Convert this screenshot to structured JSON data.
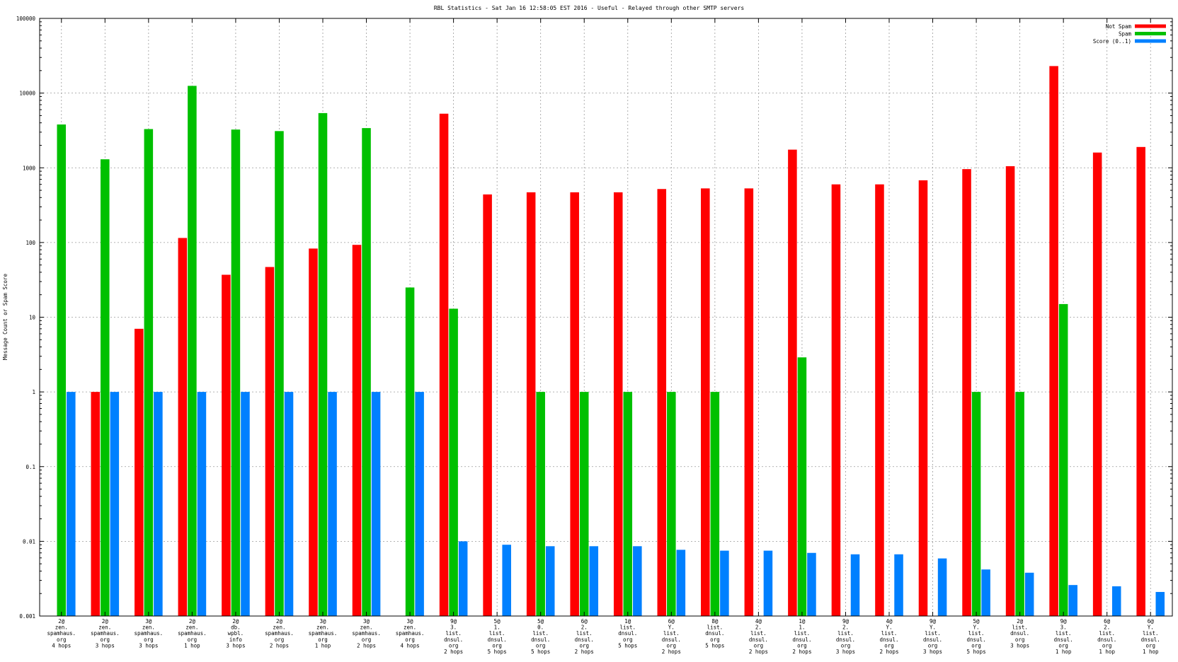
{
  "chart_data": {
    "type": "bar",
    "title": "RBL Statistics - Sat Jan 16 12:58:05 EST 2016 - Useful - Relayed through other SMTP servers",
    "xlabel": "",
    "ylabel": "Message Count or Spam Score",
    "yscale": "log",
    "ylim": [
      0.001,
      100000
    ],
    "yticks": [
      "0.001",
      "0.01",
      "0.1",
      "1",
      "10",
      "100",
      "1000",
      "10000",
      "100000"
    ],
    "grid": true,
    "legend_position": "top-right",
    "categories": [
      [
        "2@",
        "zen.",
        "spamhaus.",
        "org",
        "4 hops"
      ],
      [
        "2@",
        "zen.",
        "spamhaus.",
        "org",
        "3 hops"
      ],
      [
        "3@",
        "zen.",
        "spamhaus.",
        "org",
        "3 hops"
      ],
      [
        "2@",
        "zen.",
        "spamhaus.",
        "org",
        "1 hop"
      ],
      [
        "2@",
        "db.",
        "wpbl.",
        "info",
        "3 hops"
      ],
      [
        "2@",
        "zen.",
        "spamhaus.",
        "org",
        "2 hops"
      ],
      [
        "3@",
        "zen.",
        "spamhaus.",
        "org",
        "1 hop"
      ],
      [
        "3@",
        "zen.",
        "spamhaus.",
        "org",
        "2 hops"
      ],
      [
        "3@",
        "zen.",
        "spamhaus.",
        "org",
        "4 hops"
      ],
      [
        "9@",
        "3.",
        "list.",
        "dnsul.",
        "org",
        "2 hops"
      ],
      [
        "5@",
        "1.",
        "list.",
        "dnsul.",
        "org",
        "5 hops"
      ],
      [
        "5@",
        "0.",
        "list.",
        "dnsul.",
        "org",
        "5 hops"
      ],
      [
        "6@",
        "2.",
        "list.",
        "dnsul.",
        "org",
        "2 hops"
      ],
      [
        "1@",
        "list.",
        "dnsul.",
        "org",
        "5 hops"
      ],
      [
        "6@",
        "Y.",
        "list.",
        "dnsul.",
        "org",
        "2 hops"
      ],
      [
        "8@",
        "list.",
        "dnsul.",
        "org",
        "5 hops"
      ],
      [
        "4@",
        "2.",
        "list.",
        "dnsul.",
        "org",
        "2 hops"
      ],
      [
        "1@",
        "1.",
        "list.",
        "dnsul.",
        "org",
        "2 hops"
      ],
      [
        "9@",
        "2.",
        "list.",
        "dnsul.",
        "org",
        "3 hops"
      ],
      [
        "4@",
        "Y.",
        "list.",
        "dnsul.",
        "org",
        "2 hops"
      ],
      [
        "9@",
        "Y.",
        "list.",
        "dnsul.",
        "org",
        "3 hops"
      ],
      [
        "5@",
        "Y.",
        "list.",
        "dnsul.",
        "org",
        "5 hops"
      ],
      [
        "2@",
        "list.",
        "dnsul.",
        "org",
        "3 hops"
      ],
      [
        "9@",
        "3.",
        "list.",
        "dnsul.",
        "org",
        "1 hop"
      ],
      [
        "6@",
        "2.",
        "list.",
        "dnsul.",
        "org",
        "1 hop"
      ],
      [
        "6@",
        "Y.",
        "list.",
        "dnsul.",
        "org",
        "1 hop"
      ]
    ],
    "series": [
      {
        "name": "Not Spam",
        "color": "#ff0000",
        "values": [
          null,
          1,
          7,
          115,
          37,
          47,
          83,
          93,
          null,
          5300,
          440,
          470,
          470,
          470,
          520,
          530,
          530,
          1750,
          600,
          600,
          680,
          960,
          1050,
          23000,
          1600,
          1900
        ]
      },
      {
        "name": "Spam",
        "color": "#00c000",
        "values": [
          3800,
          1300,
          3300,
          12500,
          3250,
          3100,
          5400,
          3400,
          25,
          13,
          null,
          1,
          1,
          1,
          1,
          1,
          null,
          2.9,
          null,
          null,
          null,
          1,
          1,
          15,
          null,
          null
        ]
      },
      {
        "name": "Score (0..1)",
        "color": "#0080ff",
        "values": [
          1,
          1,
          1,
          1,
          1,
          1,
          1,
          1,
          1,
          0.01,
          0.009,
          0.0086,
          0.0086,
          0.0086,
          0.0077,
          0.0075,
          0.0075,
          0.007,
          0.0067,
          0.0067,
          0.0059,
          0.0042,
          0.0038,
          0.0026,
          0.0025,
          0.0021
        ]
      }
    ]
  }
}
